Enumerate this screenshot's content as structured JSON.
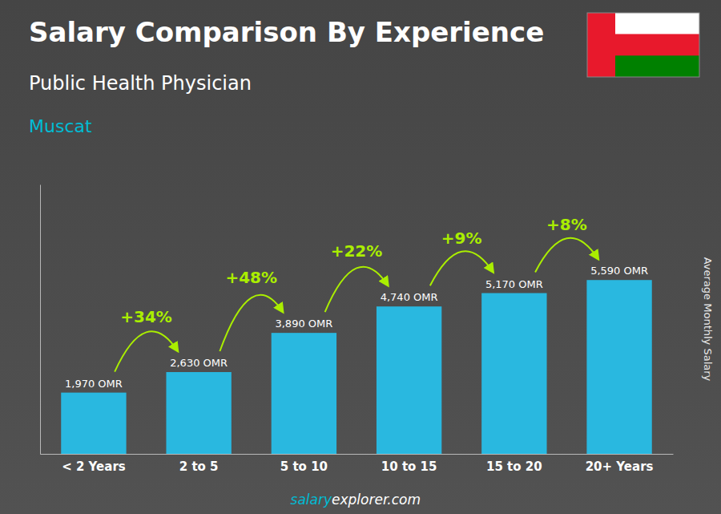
{
  "chart_data": {
    "type": "bar",
    "title": "Salary Comparison By Experience",
    "subtitle": "Public Health Physician",
    "city": "Muscat",
    "ylabel": "Average Monthly Salary",
    "categories": [
      "< 2 Years",
      "2 to 5",
      "5 to 10",
      "10 to 15",
      "15 to 20",
      "20+ Years"
    ],
    "values": [
      1970,
      2630,
      3890,
      4740,
      5170,
      5590
    ],
    "value_labels": [
      "1,970 OMR",
      "2,630 OMR",
      "3,890 OMR",
      "4,740 OMR",
      "5,170 OMR",
      "5,590 OMR"
    ],
    "data_labels": true,
    "annotations": [
      "+34%",
      "+48%",
      "+22%",
      "+9%",
      "+8%"
    ],
    "footer": [
      "salary",
      "explorer",
      ".com"
    ],
    "color": "#29b8e0",
    "flag_colors": {
      "red": "#e8192c",
      "white": "#ffffff",
      "green": "#008000"
    },
    "ylim": [
      0,
      8664.5
    ],
    "tick_labels": "x",
    "grid": false
  }
}
